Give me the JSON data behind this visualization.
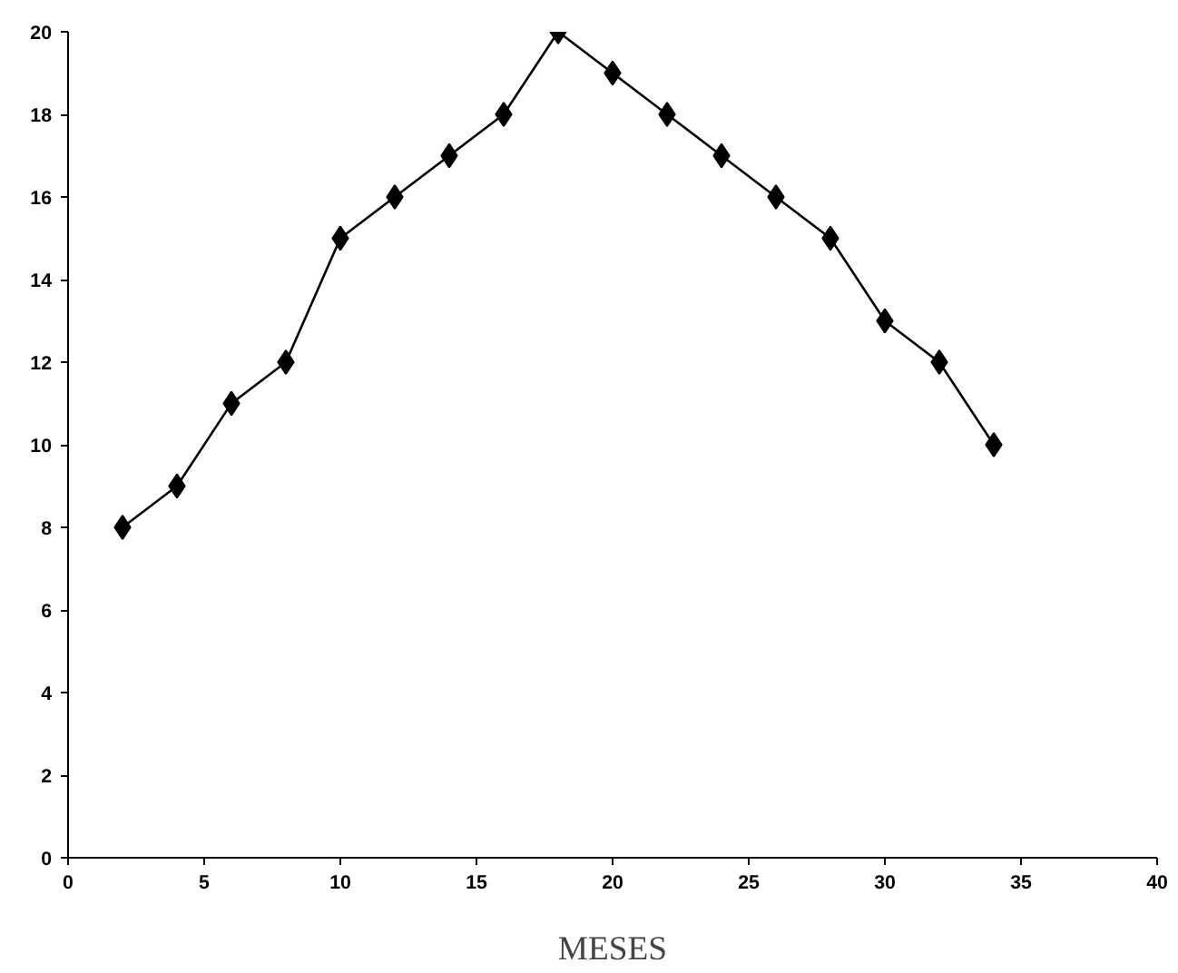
{
  "chart_data": {
    "type": "line",
    "xlabel": "MESES",
    "x": [
      2,
      4,
      6,
      8,
      10,
      12,
      14,
      16,
      18,
      20,
      22,
      24,
      26,
      28,
      30,
      32,
      34
    ],
    "series": [
      {
        "color": "#000000",
        "values": [
          8,
          9,
          11,
          12,
          15,
          16,
          17,
          18,
          20,
          19,
          18,
          17,
          16,
          15,
          13,
          12,
          10
        ]
      }
    ],
    "xlim": [
      0,
      40
    ],
    "xticks": [
      0,
      5,
      10,
      15,
      20,
      25,
      30,
      35,
      40
    ],
    "ylim": [
      0,
      20
    ],
    "yticks": [
      0,
      2,
      4,
      6,
      8,
      10,
      12,
      14,
      16,
      18,
      20
    ],
    "grid": false,
    "marker": "diamond",
    "line_style": "solid"
  }
}
